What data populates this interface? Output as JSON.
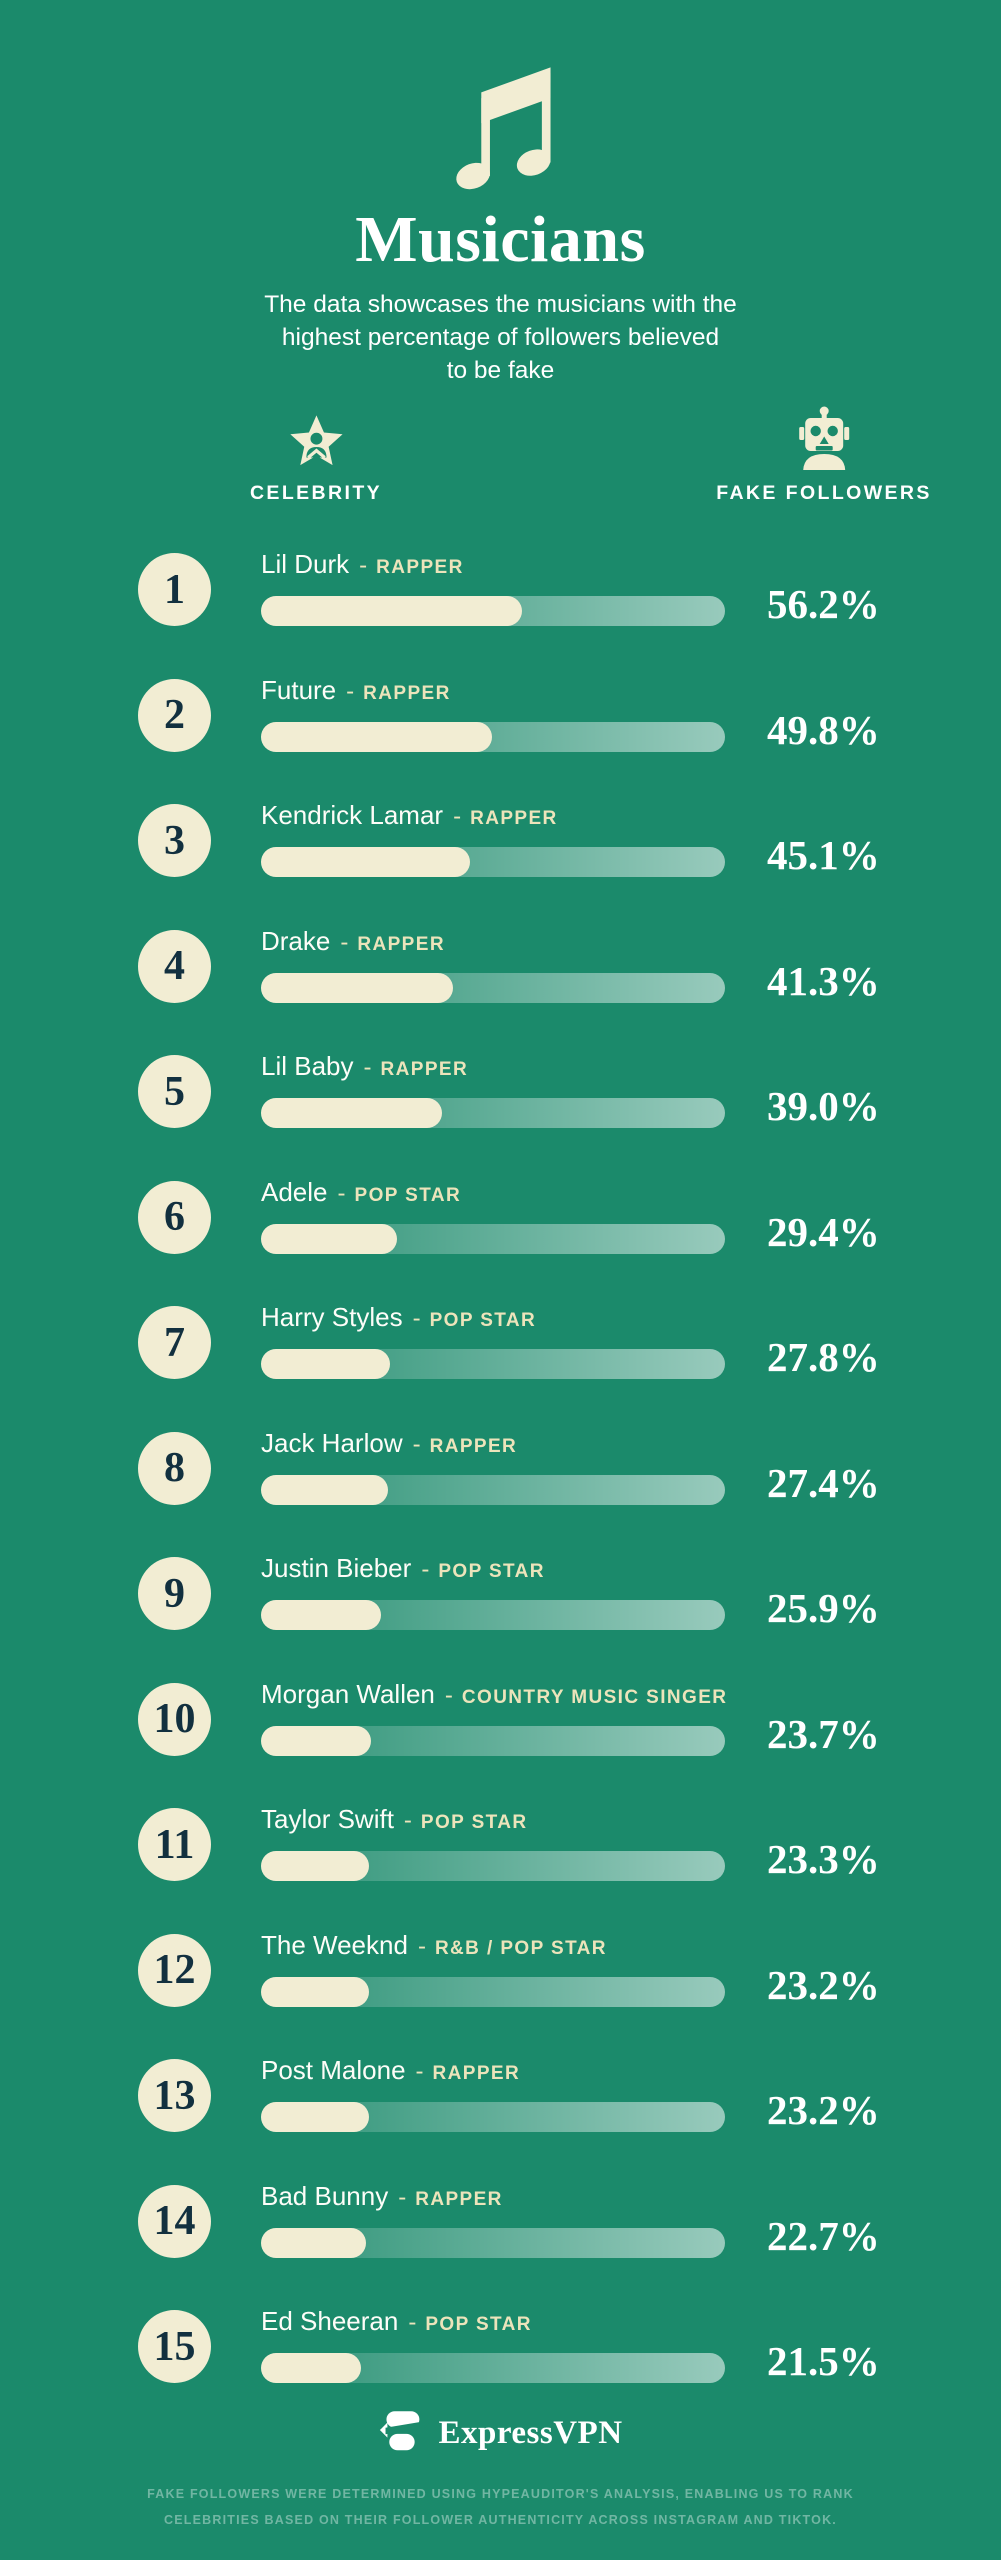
{
  "colors": {
    "background": "#1b8a6b",
    "cream": "#f2edd3",
    "navy": "#12303f",
    "tag_cream": "#ece4bb",
    "white": "#ffffff",
    "disclaimer": "rgba(255,255,255,0.38)"
  },
  "icons": {
    "header": "music-note-icon",
    "celebrity_column": "star-person-icon",
    "fake_followers_column": "robot-icon",
    "brand": "expressvpn-mark-icon"
  },
  "header": {
    "title": "Musicians",
    "subtitle": "The data showcases the musicians with the highest percentage of followers believed to be fake",
    "subtitle_lines": [
      "The data showcases the musicians with the",
      "highest percentage of followers believed",
      "to be fake"
    ]
  },
  "columns": {
    "celebrity_label": "CELEBRITY",
    "fake_followers_label": "FAKE FOLLOWERS"
  },
  "rows": [
    {
      "rank": "1",
      "name": "Lil Durk",
      "sep": "-",
      "tag": "RAPPER",
      "pct": "56.2%",
      "value": 56.2
    },
    {
      "rank": "2",
      "name": "Future",
      "sep": "-",
      "tag": "RAPPER",
      "pct": "49.8%",
      "value": 49.8
    },
    {
      "rank": "3",
      "name": "Kendrick Lamar",
      "sep": "-",
      "tag": "RAPPER",
      "pct": "45.1%",
      "value": 45.1
    },
    {
      "rank": "4",
      "name": "Drake",
      "sep": "-",
      "tag": "RAPPER",
      "pct": "41.3%",
      "value": 41.3
    },
    {
      "rank": "5",
      "name": "Lil Baby",
      "sep": "-",
      "tag": "RAPPER",
      "pct": "39.0%",
      "value": 39.0
    },
    {
      "rank": "6",
      "name": "Adele",
      "sep": "-",
      "tag": "POP STAR",
      "pct": "29.4%",
      "value": 29.4
    },
    {
      "rank": "7",
      "name": "Harry Styles",
      "sep": "-",
      "tag": "POP STAR",
      "pct": "27.8%",
      "value": 27.8
    },
    {
      "rank": "8",
      "name": "Jack Harlow",
      "sep": "-",
      "tag": "RAPPER",
      "pct": "27.4%",
      "value": 27.4
    },
    {
      "rank": "9",
      "name": "Justin Bieber",
      "sep": "-",
      "tag": "POP STAR",
      "pct": "25.9%",
      "value": 25.9
    },
    {
      "rank": "10",
      "name": "Morgan Wallen",
      "sep": "-",
      "tag": "COUNTRY MUSIC SINGER",
      "pct": "23.7%",
      "value": 23.7
    },
    {
      "rank": "11",
      "name": "Taylor Swift",
      "sep": "-",
      "tag": "POP STAR",
      "pct": "23.3%",
      "value": 23.3
    },
    {
      "rank": "12",
      "name": "The Weeknd",
      "sep": "-",
      "tag": "R&B / POP STAR",
      "pct": "23.2%",
      "value": 23.2
    },
    {
      "rank": "13",
      "name": "Post Malone",
      "sep": "-",
      "tag": "RAPPER",
      "pct": "23.2%",
      "value": 23.2
    },
    {
      "rank": "14",
      "name": "Bad Bunny",
      "sep": "-",
      "tag": "RAPPER",
      "pct": "22.7%",
      "value": 22.7
    },
    {
      "rank": "15",
      "name": "Ed Sheeran",
      "sep": "-",
      "tag": "POP STAR",
      "pct": "21.5%",
      "value": 21.5
    }
  ],
  "footer": {
    "brand": "ExpressVPN",
    "disclaimer": "FAKE FOLLOWERS WERE DETERMINED USING HYPEAUDITOR'S ANALYSIS, ENABLING US TO RANK CELEBRITIES BASED ON THEIR FOLLOWER AUTHENTICITY ACROSS INSTAGRAM AND TIKTOK.",
    "disclaimer_lines": [
      "FAKE FOLLOWERS WERE DETERMINED USING HYPEAUDITOR'S ANALYSIS, ENABLING US TO RANK",
      "CELEBRITIES BASED ON THEIR FOLLOWER AUTHENTICITY ACROSS INSTAGRAM AND TIKTOK."
    ]
  },
  "chart_data": {
    "type": "bar",
    "orientation": "horizontal",
    "title": "Musicians",
    "subtitle": "The data showcases the musicians with the highest percentage of followers believed to be fake",
    "categories": [
      "Lil Durk",
      "Future",
      "Kendrick Lamar",
      "Drake",
      "Lil Baby",
      "Adele",
      "Harry Styles",
      "Jack Harlow",
      "Justin Bieber",
      "Morgan Wallen",
      "Taylor Swift",
      "The Weeknd",
      "Post Malone",
      "Bad Bunny",
      "Ed Sheeran"
    ],
    "category_types": [
      "Rapper",
      "Rapper",
      "Rapper",
      "Rapper",
      "Rapper",
      "Pop star",
      "Pop star",
      "Rapper",
      "Pop star",
      "Country music singer",
      "Pop star",
      "R&B / Pop star",
      "Rapper",
      "Rapper",
      "Pop star"
    ],
    "values": [
      56.2,
      49.8,
      45.1,
      41.3,
      39.0,
      29.4,
      27.8,
      27.4,
      25.9,
      23.7,
      23.3,
      23.2,
      23.2,
      22.7,
      21.5
    ],
    "xlabel": "Fake followers (%)",
    "ylabel": "Celebrity",
    "xlim": [
      0,
      100
    ],
    "value_suffix": "%",
    "grid": false,
    "legend": false
  }
}
